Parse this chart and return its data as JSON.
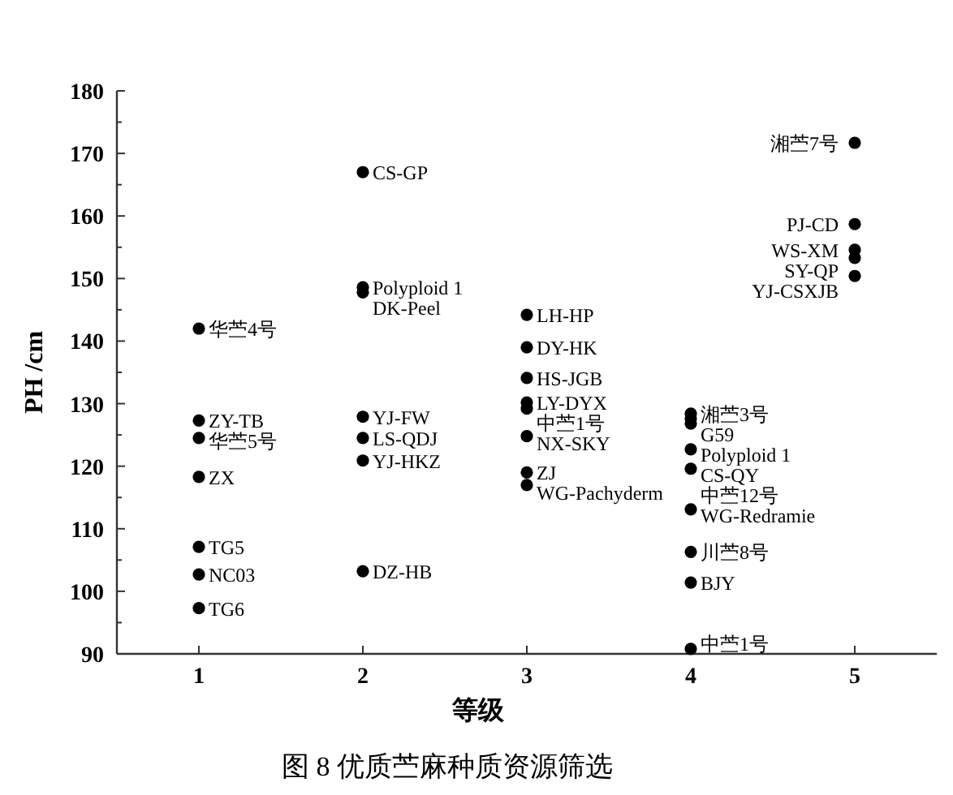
{
  "chart_data": {
    "type": "scatter",
    "title": "图 8 优质苎麻种质资源筛选",
    "xlabel": "等级",
    "ylabel": "PH /cm",
    "xlim": [
      0.5,
      5.5
    ],
    "xticks": [
      1,
      2,
      3,
      4,
      5
    ],
    "ylim": [
      90,
      180
    ],
    "yticks": [
      90,
      {
        "value": 95,
        "label": null
      },
      100,
      {
        "value": 105,
        "label": null
      },
      110,
      {
        "value": 115,
        "label": null
      },
      120,
      {
        "value": 125,
        "label": null
      },
      130,
      {
        "value": 135,
        "label": null
      },
      140,
      {
        "value": 145,
        "label": null
      },
      150,
      {
        "value": 155,
        "label": null
      },
      160,
      {
        "value": 165,
        "label": null
      },
      170,
      {
        "value": 175,
        "label": null
      },
      180
    ],
    "grid": false,
    "marker": "circle",
    "series": [
      {
        "color": "#000000",
        "x": [
          1,
          1,
          1,
          1,
          1,
          1,
          1,
          2,
          2,
          2,
          2,
          2,
          2,
          2,
          3,
          3,
          3,
          3,
          3,
          3,
          3,
          3,
          4,
          4,
          4,
          4,
          4,
          4,
          4,
          4,
          4,
          5,
          5,
          5,
          5,
          5
        ],
        "values": [
          142,
          127.3,
          124.5,
          118.3,
          107.1,
          102.7,
          97.3,
          167,
          148.6,
          147.8,
          127.9,
          124.5,
          120.9,
          103.2,
          144.2,
          139,
          134.1,
          130.2,
          129.2,
          124.8,
          119,
          117,
          128.4,
          127.6,
          126.8,
          122.7,
          119.6,
          113.1,
          106.3,
          101.4,
          90.8,
          171.7,
          158.7,
          154.6,
          153.3,
          150.4
        ]
      }
    ],
    "annotations": [
      {
        "text": "华苎4号",
        "x": 1,
        "y": 142
      },
      {
        "text": "ZY-TB",
        "x": 1,
        "y": 127.3
      },
      {
        "text": "华苎5号",
        "x": 1,
        "y": 124.5
      },
      {
        "text": "ZX",
        "x": 1,
        "y": 118.3
      },
      {
        "text": "TG5",
        "x": 1,
        "y": 107.1
      },
      {
        "text": "NC03",
        "x": 1,
        "y": 102.7
      },
      {
        "text": "TG6",
        "x": 1,
        "y": 97.3
      },
      {
        "text": "CS-GP",
        "x": 2,
        "y": 167
      },
      {
        "text": "Polyploid 1",
        "x": 2,
        "y": 148.6
      },
      {
        "text": "DK-Peel",
        "x": 2,
        "y": 147.8
      },
      {
        "text": "YJ-FW",
        "x": 2,
        "y": 127.9
      },
      {
        "text": "LS-QDJ",
        "x": 2,
        "y": 124.5
      },
      {
        "text": "YJ-HKZ",
        "x": 2,
        "y": 120.9
      },
      {
        "text": "DZ-HB",
        "x": 2,
        "y": 103.2
      },
      {
        "text": "LH-HP",
        "x": 3,
        "y": 144.2
      },
      {
        "text": "DY-HK",
        "x": 3,
        "y": 139
      },
      {
        "text": "HS-JGB",
        "x": 3,
        "y": 134.1
      },
      {
        "text": "LY-DYX",
        "x": 3,
        "y": 130.2
      },
      {
        "text": "中苎1号",
        "x": 3,
        "y": 129.2
      },
      {
        "text": "NX-SKY",
        "x": 3,
        "y": 124.8
      },
      {
        "text": "ZJ",
        "x": 3,
        "y": 119
      },
      {
        "text": "WG-Pachyderm",
        "x": 3,
        "y": 117
      },
      {
        "text": "湘苎3号",
        "x": 4,
        "y": 128.4
      },
      {
        "text": "G59",
        "x": 4,
        "y": 127.6
      },
      {
        "text": "Polyploid 1",
        "x": 4,
        "y": 126.8
      },
      {
        "text": "CS-QY",
        "x": 4,
        "y": 122.7
      },
      {
        "text": "中苎12号",
        "x": 4,
        "y": 119.6
      },
      {
        "text": "WG-Redramie",
        "x": 4,
        "y": 113.1
      },
      {
        "text": "川苎8号",
        "x": 4,
        "y": 106.3
      },
      {
        "text": "BJY",
        "x": 4,
        "y": 101.4
      },
      {
        "text": "中苎1号",
        "x": 4,
        "y": 90.8
      },
      {
        "text": "湘苎7号",
        "x": 5,
        "y": 171.7
      },
      {
        "text": "PJ-CD",
        "x": 5,
        "y": 158.7
      },
      {
        "text": "WS-XM",
        "x": 5,
        "y": 154.6
      },
      {
        "text": "SY-QP",
        "x": 5,
        "y": 153.3
      },
      {
        "text": "YJ-CSXJB",
        "x": 5,
        "y": 150.4
      }
    ]
  }
}
